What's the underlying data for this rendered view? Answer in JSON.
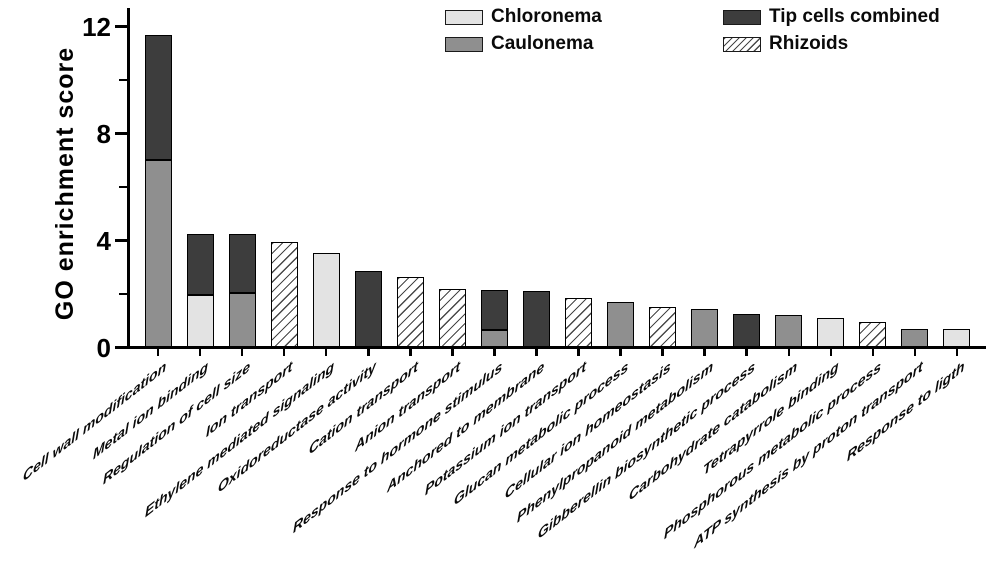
{
  "figure": {
    "background": "#ffffff",
    "axis_color": "#000000"
  },
  "chart_data": {
    "type": "bar",
    "stacked": true,
    "title": "",
    "xlabel": "",
    "ylabel": "GO enrichment score",
    "ylim": [
      0,
      12
    ],
    "yticks_major": [
      0,
      4,
      8,
      12
    ],
    "yticks_minor": [
      2,
      6,
      10
    ],
    "grid": false,
    "legend_position": "top",
    "series_styles": [
      {
        "name": "Chloronema",
        "fill": "#e3e3e3",
        "pattern": "solid"
      },
      {
        "name": "Caulonema",
        "fill": "#8f8f8f",
        "pattern": "solid"
      },
      {
        "name": "Tip cells combined",
        "fill": "#3d3d3d",
        "pattern": "solid"
      },
      {
        "name": "Rhizoids",
        "fill": "#ffffff",
        "pattern": "diagonal-hatch"
      }
    ],
    "categories": [
      "Cell wall modification",
      "Metal ion binding",
      "Regulation of cell size",
      "Ion transport",
      "Ethylene mediated signaling",
      "Oxidoreductase activity",
      "Cation transport",
      "Anion transport",
      "Response to hormone stimulus",
      "Anchored to membrane",
      "Potassium ion transport",
      "Glucan metabolic process",
      "Cellular ion homeostasis",
      "Phenylpropanoid metabolism",
      "Gibberellin biosynthetic process",
      "Carbohydrate catabolism",
      "Tetrapyrrole binding",
      "Phosphorous metabolic process",
      "ATP synthesis by proton transport",
      "Response to ligth"
    ],
    "bars": [
      {
        "category": "Cell wall modification",
        "segments": [
          {
            "series": "Caulonema",
            "value": 7.0
          },
          {
            "series": "Tip cells combined",
            "value": 4.7
          }
        ]
      },
      {
        "category": "Metal ion binding",
        "segments": [
          {
            "series": "Chloronema",
            "value": 1.95
          },
          {
            "series": "Tip cells combined",
            "value": 2.3
          }
        ]
      },
      {
        "category": "Regulation of cell size",
        "segments": [
          {
            "series": "Caulonema",
            "value": 2.05
          },
          {
            "series": "Tip cells combined",
            "value": 2.2
          }
        ]
      },
      {
        "category": "Ion transport",
        "segments": [
          {
            "series": "Rhizoids",
            "value": 3.95
          }
        ]
      },
      {
        "category": "Ethylene mediated signaling",
        "segments": [
          {
            "series": "Chloronema",
            "value": 3.55
          }
        ]
      },
      {
        "category": "Oxidoreductase activity",
        "segments": [
          {
            "series": "Tip cells combined",
            "value": 2.85
          }
        ]
      },
      {
        "category": "Cation transport",
        "segments": [
          {
            "series": "Rhizoids",
            "value": 2.65
          }
        ]
      },
      {
        "category": "Anion transport",
        "segments": [
          {
            "series": "Rhizoids",
            "value": 2.2
          }
        ]
      },
      {
        "category": "Response to hormone stimulus",
        "segments": [
          {
            "series": "Caulonema",
            "value": 0.65
          },
          {
            "series": "Tip cells combined",
            "value": 1.5
          }
        ]
      },
      {
        "category": "Anchored to membrane",
        "segments": [
          {
            "series": "Tip cells combined",
            "value": 2.1
          }
        ]
      },
      {
        "category": "Potassium ion transport",
        "segments": [
          {
            "series": "Rhizoids",
            "value": 1.85
          }
        ]
      },
      {
        "category": "Glucan metabolic process",
        "segments": [
          {
            "series": "Caulonema",
            "value": 1.7
          }
        ]
      },
      {
        "category": "Cellular ion homeostasis",
        "segments": [
          {
            "series": "Rhizoids",
            "value": 1.5
          }
        ]
      },
      {
        "category": "Phenylpropanoid metabolism",
        "segments": [
          {
            "series": "Caulonema",
            "value": 1.45
          }
        ]
      },
      {
        "category": "Gibberellin biosynthetic process",
        "segments": [
          {
            "series": "Tip cells combined",
            "value": 1.25
          }
        ]
      },
      {
        "category": "Carbohydrate catabolism",
        "segments": [
          {
            "series": "Caulonema",
            "value": 1.2
          }
        ]
      },
      {
        "category": "Tetrapyrrole binding",
        "segments": [
          {
            "series": "Chloronema",
            "value": 1.1
          }
        ]
      },
      {
        "category": "Phosphorous metabolic process",
        "segments": [
          {
            "series": "Rhizoids",
            "value": 0.95
          }
        ]
      },
      {
        "category": "ATP synthesis by proton transport",
        "segments": [
          {
            "series": "Caulonema",
            "value": 0.7
          }
        ]
      },
      {
        "category": "Response to ligth",
        "segments": [
          {
            "series": "Chloronema",
            "value": 0.7
          }
        ]
      }
    ],
    "legend": [
      "Chloronema",
      "Caulonema",
      "Tip cells combined",
      "Rhizoids"
    ]
  }
}
